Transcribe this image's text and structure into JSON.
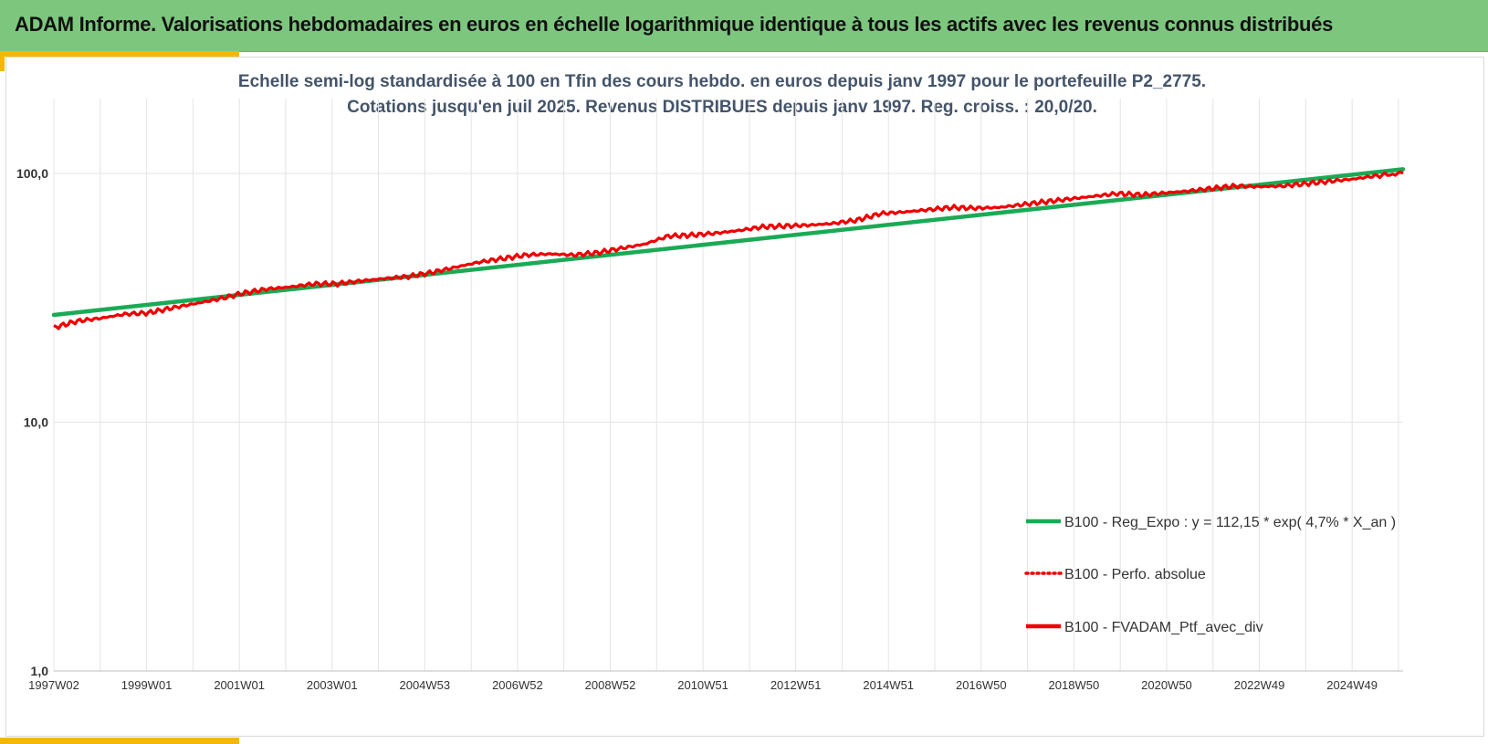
{
  "header": {
    "title": "ADAM Informe. Valorisations hebdomadaires en euros en échelle logarithmique identique à tous les actifs avec les revenus connus distribués"
  },
  "colors": {
    "header_bg": "#7dc67e",
    "accent": "#f5b800",
    "regression": "#1aaa55",
    "portfolio": "#ee0000",
    "subtitle": "#44546a"
  },
  "chart_data": {
    "type": "line",
    "title_lines": [
      "Echelle semi-log standardisée  à 100 en Tfin des cours hebdo.  en euros depuis janv 1997 pour  le portefeuille P2_2775.",
      "Cotations  jusqu'en juil 2025. Revenus DISTRIBUES depuis janv 1997. Reg. croiss. : 20,0/20."
    ],
    "y_scale": "log",
    "ylim": [
      1,
      200
    ],
    "y_ticks": [
      "1,0",
      "10,0",
      "100,0"
    ],
    "x_range": [
      1997.0,
      2025.55
    ],
    "x_ticks": [
      "1997W02",
      "1999W01",
      "2001W01",
      "2003W01",
      "2004W53",
      "2006W52",
      "2008W52",
      "2010W51",
      "2012W51",
      "2014W51",
      "2016W50",
      "2018W50",
      "2020W50",
      "2022W49",
      "2024W49"
    ],
    "grid": true,
    "legend_position": "bottom-right",
    "series": [
      {
        "name": "B100 - Reg_Expo : y = 112,15 * exp( 4,7% *  X_an )",
        "style": "solid",
        "color": "#1aaa55",
        "x": [
          1997.0,
          2025.55
        ],
        "y": [
          27.0,
          104.0
        ]
      },
      {
        "name": "B100 - Perfo. absolue",
        "style": "dotted",
        "color": "#ee0000",
        "x": [],
        "y": []
      },
      {
        "name": "B100 - FVADAM_Ptf_avec_div",
        "style": "solid",
        "color": "#ee0000",
        "x": [
          1997.0,
          1997.5,
          1998.0,
          1998.5,
          1999.0,
          1999.5,
          2000.0,
          2000.5,
          2001.0,
          2001.5,
          2002.0,
          2002.5,
          2003.0,
          2003.5,
          2004.0,
          2004.5,
          2005.0,
          2005.5,
          2006.0,
          2006.5,
          2007.0,
          2007.5,
          2008.0,
          2008.5,
          2009.0,
          2009.5,
          2010.0,
          2010.5,
          2011.0,
          2011.5,
          2012.0,
          2012.5,
          2013.0,
          2013.5,
          2014.0,
          2014.5,
          2015.0,
          2015.5,
          2016.0,
          2016.5,
          2017.0,
          2017.5,
          2018.0,
          2018.5,
          2019.0,
          2019.5,
          2020.0,
          2020.5,
          2021.0,
          2021.5,
          2022.0,
          2022.5,
          2023.0,
          2023.5,
          2024.0,
          2024.5,
          2025.0,
          2025.55
        ],
        "y": [
          24.0,
          25.5,
          26.2,
          27.2,
          27.5,
          28.8,
          30.0,
          31.3,
          33.0,
          34.3,
          35.0,
          36.0,
          36.0,
          37.0,
          37.8,
          38.5,
          40.0,
          42.0,
          44.0,
          45.5,
          47.0,
          47.5,
          47.0,
          48.0,
          50.0,
          52.0,
          56.0,
          56.5,
          57.5,
          59.0,
          61.0,
          61.5,
          62.0,
          63.0,
          65.0,
          69.0,
          70.0,
          71.5,
          73.0,
          72.5,
          73.0,
          75.0,
          77.0,
          79.0,
          81.0,
          83.0,
          82.0,
          83.5,
          85.0,
          87.0,
          89.0,
          88.5,
          89.0,
          91.0,
          93.0,
          95.0,
          98.0,
          100.0
        ]
      }
    ]
  }
}
